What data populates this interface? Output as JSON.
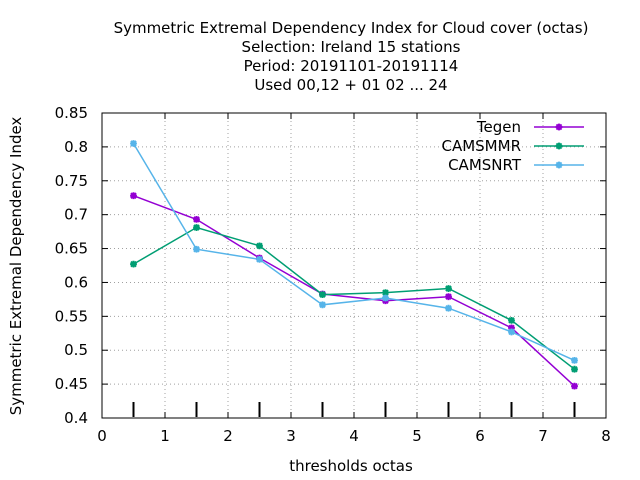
{
  "chart_data": {
    "type": "line",
    "title_lines": [
      "Symmetric Extremal Dependency Index  for Cloud cover (octas)",
      "Selection: Ireland     15 stations",
      "Period: 20191101-20191114",
      "Used  00,12  + 01 02 ... 24"
    ],
    "xlabel": "thresholds octas",
    "ylabel": "Symmetric Extremal Dependency Index",
    "xlim": [
      0,
      8
    ],
    "ylim": [
      0.4,
      0.85
    ],
    "xticks": [
      0,
      1,
      2,
      3,
      4,
      5,
      6,
      7,
      8
    ],
    "yticks": [
      0.4,
      0.45,
      0.5,
      0.55,
      0.6,
      0.65,
      0.7,
      0.75,
      0.8,
      0.85
    ],
    "grid": true,
    "legend_position": "top-right",
    "bar_positions": [
      0.5,
      1.5,
      2.5,
      3.5,
      4.5,
      5.5,
      6.5,
      7.5
    ],
    "x": [
      0.5,
      1.5,
      2.5,
      3.5,
      4.5,
      5.5,
      6.5,
      7.5
    ],
    "series": [
      {
        "name": "Tegen",
        "color": "#9400d3",
        "values": [
          0.728,
          0.693,
          0.636,
          0.583,
          0.573,
          0.579,
          0.533,
          0.447
        ]
      },
      {
        "name": "CAMSMMR",
        "color": "#009e73",
        "values": [
          0.627,
          0.681,
          0.654,
          0.582,
          0.585,
          0.591,
          0.544,
          0.472
        ]
      },
      {
        "name": "CAMSNRT",
        "color": "#56b4e9",
        "values": [
          0.805,
          0.649,
          0.634,
          0.567,
          0.577,
          0.562,
          0.527,
          0.485
        ]
      }
    ]
  }
}
